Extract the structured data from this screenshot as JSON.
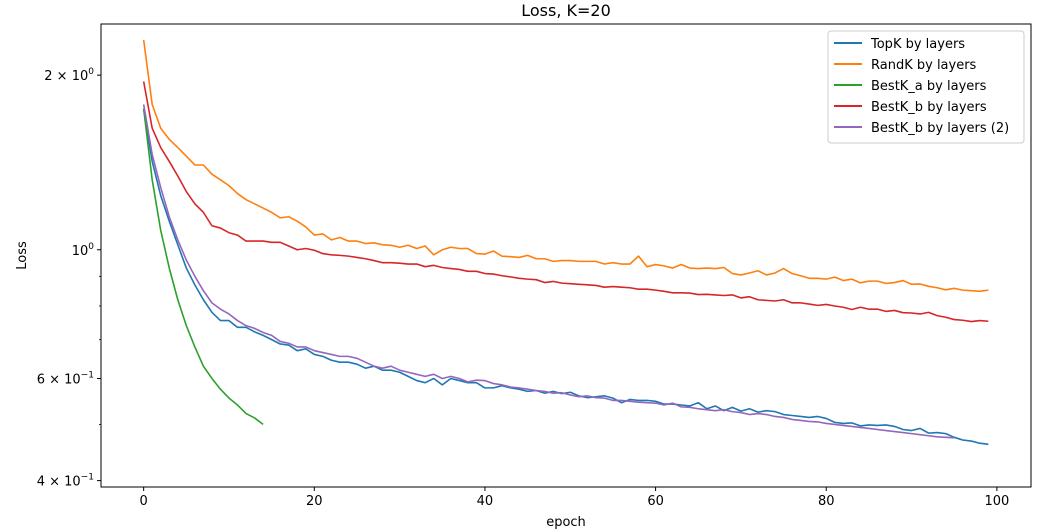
{
  "chart_data": {
    "type": "line",
    "title": "Loss, K=20",
    "xlabel": "epoch",
    "ylabel": "Loss",
    "yscale": "log",
    "xlim": [
      -5,
      104
    ],
    "ylim": [
      0.39,
      2.45
    ],
    "xticks": [
      0,
      20,
      40,
      60,
      80,
      100
    ],
    "xtick_labels": [
      "0",
      "20",
      "40",
      "60",
      "80",
      "100"
    ],
    "yticks": [
      0.4,
      0.6,
      1.0,
      2.0
    ],
    "ytick_labels": [
      {
        "base": "4 × 10",
        "exp": "−1"
      },
      {
        "base": "6 × 10",
        "exp": "−1"
      },
      {
        "base": "10",
        "exp": "0"
      },
      {
        "base": "2 × 10",
        "exp": "0"
      }
    ],
    "legend_position": "top-right",
    "series": [
      {
        "name": "TopK by layers",
        "color": "#1f77b4",
        "values": [
          1.75,
          1.42,
          1.24,
          1.12,
          1.02,
          0.93,
          0.87,
          0.82,
          0.78,
          0.755,
          0.755,
          0.735,
          0.735,
          0.722,
          0.712,
          0.7,
          0.688,
          0.685,
          0.67,
          0.675,
          0.66,
          0.655,
          0.645,
          0.64,
          0.64,
          0.635,
          0.625,
          0.63,
          0.62,
          0.62,
          0.615,
          0.605,
          0.595,
          0.59,
          0.6,
          0.585,
          0.6,
          0.595,
          0.59,
          0.59,
          0.578,
          0.578,
          0.583,
          0.578,
          0.575,
          0.57,
          0.572,
          0.566,
          0.57,
          0.565,
          0.568,
          0.56,
          0.556,
          0.558,
          0.56,
          0.555,
          0.545,
          0.552,
          0.55,
          0.55,
          0.548,
          0.542,
          0.542,
          0.54,
          0.538,
          0.545,
          0.532,
          0.538,
          0.528,
          0.535,
          0.527,
          0.532,
          0.525,
          0.528,
          0.526,
          0.52,
          0.518,
          0.516,
          0.514,
          0.516,
          0.512,
          0.504,
          0.502,
          0.503,
          0.497,
          0.499,
          0.498,
          0.499,
          0.496,
          0.49,
          0.488,
          0.492,
          0.483,
          0.484,
          0.482,
          0.475,
          0.47,
          0.468,
          0.464,
          0.462
        ]
      },
      {
        "name": "RandK by layers",
        "color": "#ff7f0e",
        "values": [
          2.3,
          1.78,
          1.62,
          1.55,
          1.5,
          1.45,
          1.4,
          1.4,
          1.35,
          1.32,
          1.29,
          1.25,
          1.22,
          1.2,
          1.18,
          1.16,
          1.135,
          1.14,
          1.12,
          1.095,
          1.06,
          1.065,
          1.04,
          1.05,
          1.035,
          1.035,
          1.025,
          1.028,
          1.02,
          1.018,
          1.01,
          1.018,
          1.005,
          1.015,
          0.98,
          1.0,
          1.01,
          1.005,
          1.005,
          0.985,
          0.983,
          0.995,
          0.975,
          0.973,
          0.97,
          0.978,
          0.965,
          0.965,
          0.955,
          0.958,
          0.958,
          0.955,
          0.955,
          0.955,
          0.945,
          0.95,
          0.945,
          0.945,
          0.975,
          0.935,
          0.943,
          0.938,
          0.93,
          0.943,
          0.93,
          0.928,
          0.93,
          0.928,
          0.932,
          0.91,
          0.905,
          0.912,
          0.92,
          0.905,
          0.912,
          0.928,
          0.91,
          0.902,
          0.893,
          0.893,
          0.89,
          0.897,
          0.885,
          0.89,
          0.877,
          0.883,
          0.883,
          0.875,
          0.878,
          0.885,
          0.872,
          0.873,
          0.865,
          0.86,
          0.853,
          0.858,
          0.852,
          0.85,
          0.848,
          0.852
        ]
      },
      {
        "name": "BestK_a by layers",
        "color": "#2ca02c",
        "values": [
          1.75,
          1.32,
          1.08,
          0.93,
          0.82,
          0.74,
          0.68,
          0.63,
          0.6,
          0.575,
          0.555,
          0.54,
          0.522,
          0.513,
          0.5
        ]
      },
      {
        "name": "BestK_b by layers",
        "color": "#d62728",
        "values": [
          1.95,
          1.62,
          1.5,
          1.42,
          1.34,
          1.26,
          1.2,
          1.16,
          1.1,
          1.09,
          1.07,
          1.06,
          1.035,
          1.035,
          1.035,
          1.03,
          1.03,
          1.015,
          1.0,
          1.005,
          0.998,
          0.985,
          0.98,
          0.978,
          0.975,
          0.97,
          0.965,
          0.958,
          0.95,
          0.95,
          0.948,
          0.945,
          0.945,
          0.935,
          0.94,
          0.932,
          0.928,
          0.925,
          0.918,
          0.918,
          0.91,
          0.908,
          0.902,
          0.898,
          0.893,
          0.89,
          0.888,
          0.878,
          0.882,
          0.876,
          0.874,
          0.872,
          0.87,
          0.868,
          0.862,
          0.864,
          0.862,
          0.86,
          0.855,
          0.855,
          0.852,
          0.848,
          0.843,
          0.843,
          0.842,
          0.837,
          0.838,
          0.836,
          0.834,
          0.836,
          0.826,
          0.83,
          0.82,
          0.818,
          0.816,
          0.82,
          0.81,
          0.81,
          0.806,
          0.802,
          0.805,
          0.8,
          0.796,
          0.789,
          0.796,
          0.79,
          0.79,
          0.783,
          0.786,
          0.779,
          0.778,
          0.775,
          0.78,
          0.77,
          0.765,
          0.758,
          0.756,
          0.752,
          0.755,
          0.753
        ]
      },
      {
        "name": "BestK_b by layers (2)",
        "color": "#9467bd",
        "values": [
          1.78,
          1.46,
          1.28,
          1.14,
          1.04,
          0.96,
          0.9,
          0.85,
          0.81,
          0.79,
          0.775,
          0.755,
          0.74,
          0.732,
          0.72,
          0.712,
          0.695,
          0.69,
          0.68,
          0.68,
          0.67,
          0.665,
          0.66,
          0.655,
          0.655,
          0.65,
          0.64,
          0.63,
          0.625,
          0.63,
          0.62,
          0.615,
          0.61,
          0.605,
          0.61,
          0.6,
          0.605,
          0.6,
          0.592,
          0.596,
          0.595,
          0.588,
          0.585,
          0.58,
          0.578,
          0.575,
          0.572,
          0.57,
          0.566,
          0.567,
          0.562,
          0.558,
          0.56,
          0.556,
          0.555,
          0.55,
          0.55,
          0.548,
          0.546,
          0.545,
          0.544,
          0.54,
          0.544,
          0.536,
          0.535,
          0.532,
          0.53,
          0.528,
          0.53,
          0.526,
          0.524,
          0.52,
          0.522,
          0.52,
          0.516,
          0.514,
          0.51,
          0.508,
          0.506,
          0.505,
          0.502,
          0.5,
          0.498,
          0.496,
          0.494,
          0.492,
          0.49,
          0.488,
          0.486,
          0.484,
          0.482,
          0.48,
          0.478,
          0.476,
          0.475,
          0.474
        ]
      }
    ]
  }
}
